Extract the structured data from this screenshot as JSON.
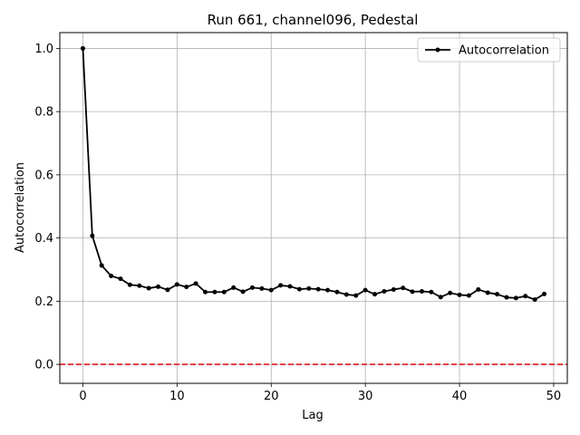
{
  "chart_data": {
    "type": "line",
    "title": "Run 661, channel096, Pedestal",
    "xlabel": "Lag",
    "ylabel": "Autocorrelation",
    "xlim": [
      -2.45,
      51.45
    ],
    "ylim": [
      -0.06,
      1.05
    ],
    "xticks": [
      0,
      10,
      20,
      30,
      40,
      50
    ],
    "xtick_labels": [
      "0",
      "10",
      "20",
      "30",
      "40",
      "50"
    ],
    "yticks": [
      0.0,
      0.2,
      0.4,
      0.6,
      0.8,
      1.0
    ],
    "ytick_labels": [
      "0.0",
      "0.2",
      "0.4",
      "0.6",
      "0.8",
      "1.0"
    ],
    "grid": true,
    "legend_position": "top-right",
    "series": [
      {
        "name": "Autocorrelation",
        "color": "#000000",
        "marker": "circle",
        "x": [
          0,
          1,
          2,
          3,
          4,
          5,
          6,
          7,
          8,
          9,
          10,
          11,
          12,
          13,
          14,
          15,
          16,
          17,
          18,
          19,
          20,
          21,
          22,
          23,
          24,
          25,
          26,
          27,
          28,
          29,
          30,
          31,
          32,
          33,
          34,
          35,
          36,
          37,
          38,
          39,
          40,
          41,
          42,
          43,
          44,
          45,
          46,
          47,
          48,
          49
        ],
        "values": [
          1.0,
          0.407,
          0.313,
          0.28,
          0.271,
          0.252,
          0.249,
          0.241,
          0.246,
          0.236,
          0.253,
          0.245,
          0.256,
          0.229,
          0.229,
          0.229,
          0.243,
          0.23,
          0.243,
          0.24,
          0.235,
          0.25,
          0.247,
          0.238,
          0.24,
          0.238,
          0.235,
          0.229,
          0.221,
          0.218,
          0.235,
          0.222,
          0.231,
          0.237,
          0.242,
          0.23,
          0.231,
          0.229,
          0.213,
          0.226,
          0.22,
          0.218,
          0.237,
          0.227,
          0.222,
          0.212,
          0.21,
          0.216,
          0.205,
          0.223
        ]
      }
    ],
    "reference_line": {
      "y": 0.0,
      "color": "#e41a1c",
      "style": "dashed"
    }
  }
}
